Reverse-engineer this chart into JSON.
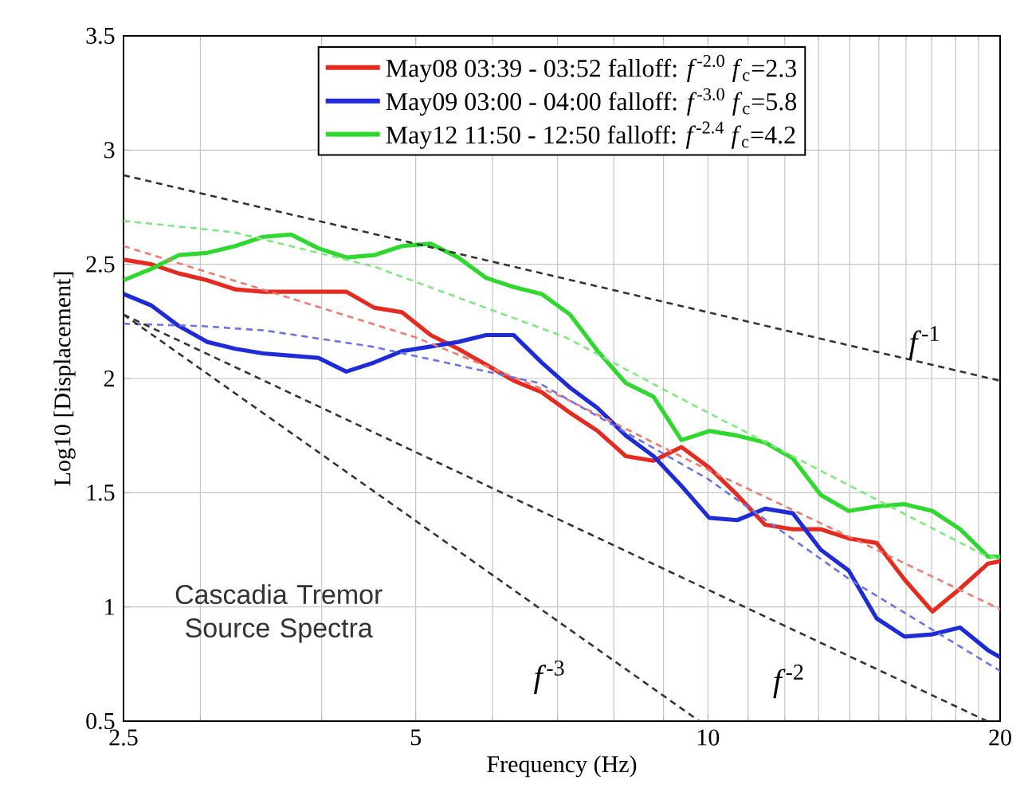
{
  "chart_data": {
    "type": "line",
    "xlabel": "Frequency (Hz)",
    "ylabel": "Log10 [Displacement]",
    "log": "x",
    "xlim": [
      2.5,
      20
    ],
    "xticks": [
      2.5,
      5,
      10,
      20
    ],
    "ylim": [
      0.5,
      3.5
    ],
    "yticks": [
      0.5,
      1,
      1.5,
      2,
      2.5,
      3,
      3.5
    ],
    "grid": true,
    "legend": "top",
    "line_style": "solid",
    "annotations": [
      "Cascadia Tremor Source Spectra",
      "*f*$^{-1}$",
      "*f*$^{-2}$",
      "*f*$^{-3}$"
    ],
    "series": [
      {
        "name": "May08 03:39 - 03:52 falloff: *f*$^{-2.0}$ *f*$_{c}$=2.3",
        "color": "#e52b20",
        "x": [
          2.5,
          2.67,
          2.85,
          3.05,
          3.26,
          3.48,
          3.72,
          3.97,
          4.24,
          4.53,
          4.84,
          5.18,
          5.53,
          5.91,
          6.31,
          6.74,
          7.21,
          7.7,
          8.23,
          8.79,
          9.39,
          10.03,
          10.72,
          11.45,
          12.23,
          13.07,
          13.96,
          14.92,
          15.94,
          17.03,
          18.19,
          19.44,
          20
        ],
        "values": [
          2.52,
          2.5,
          2.46,
          2.43,
          2.39,
          2.38,
          2.38,
          2.38,
          2.38,
          2.31,
          2.29,
          2.19,
          2.13,
          2.06,
          1.99,
          1.94,
          1.85,
          1.77,
          1.66,
          1.64,
          1.7,
          1.61,
          1.49,
          1.36,
          1.34,
          1.34,
          1.3,
          1.28,
          1.12,
          0.98,
          1.08,
          1.19,
          1.2
        ]
      },
      {
        "name": "May09 03:00 - 04:00 falloff: *f*$^{-3.0}$ *f*$_{c}$=5.8",
        "color": "#1f2bd6",
        "x": [
          2.5,
          2.67,
          2.85,
          3.05,
          3.26,
          3.48,
          3.72,
          3.97,
          4.24,
          4.53,
          4.84,
          5.18,
          5.53,
          5.91,
          6.31,
          6.74,
          7.21,
          7.7,
          8.23,
          8.79,
          9.39,
          10.03,
          10.72,
          11.45,
          12.23,
          13.07,
          13.96,
          14.92,
          15.94,
          17.03,
          18.19,
          19.44,
          20
        ],
        "values": [
          2.37,
          2.32,
          2.23,
          2.16,
          2.13,
          2.11,
          2.1,
          2.09,
          2.03,
          2.07,
          2.12,
          2.14,
          2.16,
          2.19,
          2.19,
          2.07,
          1.96,
          1.87,
          1.75,
          1.66,
          1.53,
          1.39,
          1.38,
          1.43,
          1.41,
          1.25,
          1.16,
          0.95,
          0.87,
          0.88,
          0.91,
          0.81,
          0.78
        ]
      },
      {
        "name": "May12 11:50 - 12:50 falloff: *f*$^{-2.4}$ *f*$_{c}$=4.2",
        "color": "#2fd82f",
        "x": [
          2.5,
          2.67,
          2.85,
          3.05,
          3.26,
          3.48,
          3.72,
          3.97,
          4.24,
          4.53,
          4.84,
          5.18,
          5.53,
          5.91,
          6.31,
          6.74,
          7.21,
          7.7,
          8.23,
          8.79,
          9.39,
          10.03,
          10.72,
          11.45,
          12.23,
          13.07,
          13.96,
          14.92,
          15.94,
          17.03,
          18.19,
          19.44,
          20
        ],
        "values": [
          2.43,
          2.48,
          2.54,
          2.55,
          2.58,
          2.62,
          2.63,
          2.57,
          2.53,
          2.54,
          2.58,
          2.59,
          2.53,
          2.44,
          2.4,
          2.37,
          2.28,
          2.12,
          1.98,
          1.92,
          1.73,
          1.77,
          1.75,
          1.72,
          1.65,
          1.49,
          1.42,
          1.44,
          1.45,
          1.42,
          1.34,
          1.22,
          1.22
        ]
      },
      {
        "color": "#f07a70",
        "line_style": "dashed",
        "x": [
          2.5,
          5,
          7.07,
          10,
          14.1,
          20
        ],
        "values": [
          2.58,
          2.18,
          1.92,
          1.6,
          1.3,
          0.99
        ]
      },
      {
        "color": "#6a74e6",
        "line_style": "dashed",
        "x": [
          2.5,
          3.0,
          3.5,
          4.5,
          5.5,
          6.7,
          10,
          14,
          20
        ],
        "values": [
          2.24,
          2.23,
          2.21,
          2.14,
          2.06,
          1.98,
          1.56,
          1.12,
          0.72
        ]
      },
      {
        "color": "#7fe87f",
        "line_style": "dashed",
        "x": [
          2.5,
          3.25,
          4.53,
          7.14,
          9.3,
          19.2,
          20
        ],
        "values": [
          2.69,
          2.64,
          2.49,
          2.18,
          1.92,
          1.23,
          1.21
        ]
      },
      {
        "color": "#333333",
        "line_style": "dashed",
        "x": [
          2.5,
          20
        ],
        "values": [
          2.89,
          1.99
        ]
      },
      {
        "color": "#333333",
        "line_style": "dashed",
        "x": [
          2.5,
          19.4
        ],
        "values": [
          2.28,
          0.5
        ]
      },
      {
        "color": "#333333",
        "line_style": "dashed",
        "x": [
          2.5,
          9.8
        ],
        "values": [
          2.28,
          0.5
        ]
      }
    ]
  }
}
